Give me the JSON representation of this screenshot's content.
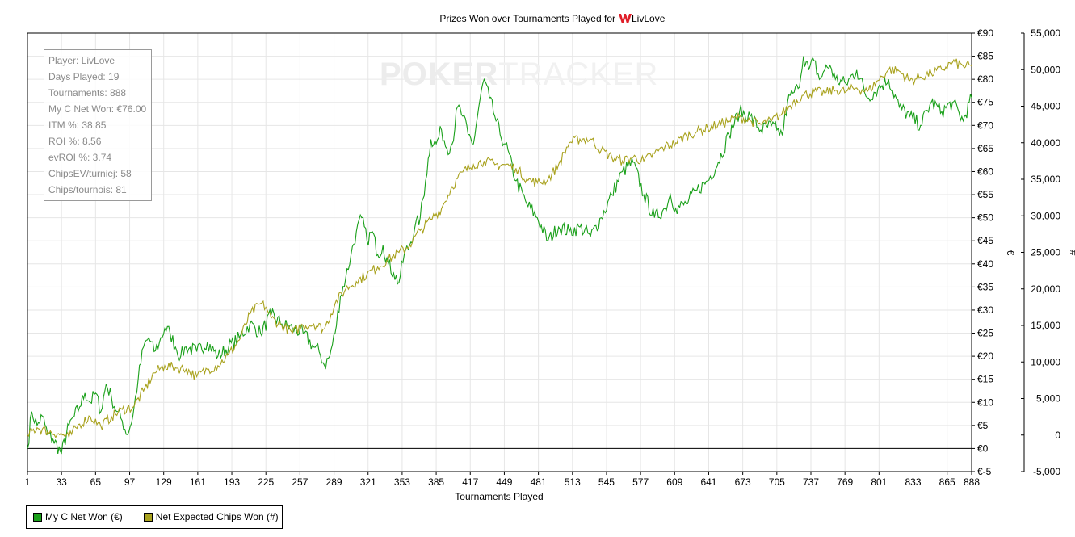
{
  "chart_data": {
    "type": "line",
    "title_prefix": "Prizes Won over Tournaments Played for",
    "player": "LivLove",
    "xlabel": "Tournaments Played",
    "ylabel_left": "€",
    "ylabel_right": "#",
    "xlim": [
      1,
      888
    ],
    "ylim_left": [
      -5,
      90
    ],
    "ylim_right": [
      -5000,
      55000
    ],
    "x_ticks": [
      1,
      33,
      65,
      97,
      129,
      161,
      193,
      225,
      257,
      289,
      321,
      353,
      385,
      417,
      449,
      481,
      513,
      545,
      577,
      609,
      641,
      673,
      705,
      737,
      769,
      801,
      833,
      865,
      888
    ],
    "y_left_ticks": [
      "€-5",
      "€0",
      "€5",
      "€10",
      "€15",
      "€20",
      "€25",
      "€30",
      "€35",
      "€40",
      "€45",
      "€50",
      "€55",
      "€60",
      "€65",
      "€70",
      "€75",
      "€80",
      "€85",
      "€90"
    ],
    "y_left_tick_values": [
      -5,
      0,
      5,
      10,
      15,
      20,
      25,
      30,
      35,
      40,
      45,
      50,
      55,
      60,
      65,
      70,
      75,
      80,
      85,
      90
    ],
    "y_right_ticks": [
      "-5,000",
      "0",
      "5,000",
      "10,000",
      "15,000",
      "20,000",
      "25,000",
      "30,000",
      "35,000",
      "40,000",
      "45,000",
      "50,000",
      "55,000"
    ],
    "y_right_tick_values": [
      -5000,
      0,
      5000,
      10000,
      15000,
      20000,
      25000,
      30000,
      35000,
      40000,
      45000,
      50000,
      55000
    ],
    "grid": true,
    "legend_position": "bottom-left",
    "series": [
      {
        "name": "My C Net Won (€)",
        "axis": "left",
        "color": "#1aa01a",
        "x": [
          1,
          5,
          10,
          15,
          20,
          25,
          33,
          40,
          45,
          50,
          55,
          60,
          65,
          70,
          75,
          80,
          85,
          90,
          95,
          100,
          105,
          110,
          115,
          120,
          125,
          130,
          135,
          140,
          145,
          150,
          160,
          170,
          180,
          190,
          200,
          210,
          220,
          230,
          240,
          250,
          260,
          270,
          275,
          280,
          285,
          290,
          295,
          300,
          305,
          310,
          315,
          320,
          325,
          330,
          335,
          340,
          345,
          350,
          355,
          360,
          365,
          370,
          375,
          380,
          385,
          390,
          395,
          400,
          405,
          410,
          415,
          420,
          425,
          430,
          435,
          440,
          445,
          450,
          460,
          470,
          480,
          490,
          500,
          510,
          520,
          530,
          540,
          550,
          560,
          570,
          580,
          590,
          600,
          605,
          610,
          620,
          630,
          640,
          650,
          660,
          670,
          680,
          690,
          700,
          705,
          710,
          715,
          720,
          725,
          730,
          735,
          740,
          745,
          750,
          755,
          760,
          770,
          780,
          790,
          800,
          810,
          820,
          830,
          840,
          850,
          860,
          870,
          880,
          888
        ],
        "y": [
          0,
          8,
          5,
          7,
          3,
          2,
          -1,
          5,
          7,
          9,
          12,
          10,
          12,
          8,
          14,
          11,
          8,
          6,
          3,
          7,
          15,
          22,
          24,
          21,
          23,
          26,
          25,
          22,
          20,
          22,
          21,
          23,
          20,
          22,
          24,
          27,
          25,
          29,
          27,
          26,
          25,
          22,
          21,
          18,
          20,
          25,
          33,
          37,
          42,
          47,
          50,
          45,
          47,
          42,
          44,
          40,
          38,
          36,
          42,
          44,
          48,
          50,
          58,
          67,
          66,
          69,
          65,
          66,
          74,
          72,
          68,
          66,
          74,
          80,
          76,
          72,
          68,
          66,
          58,
          53,
          50,
          45,
          48,
          47,
          48,
          46,
          50,
          55,
          60,
          62,
          55,
          50,
          52,
          55,
          52,
          53,
          56,
          58,
          62,
          68,
          73,
          72,
          69,
          70,
          69,
          68,
          75,
          77,
          78,
          85,
          82,
          84,
          80,
          82,
          83,
          80,
          79,
          82,
          76,
          78,
          80,
          74,
          72,
          70,
          75,
          73,
          75,
          71,
          76
        ]
      },
      {
        "name": "Net Expected Chips Won (#)",
        "axis": "right",
        "color": "#a9a21e",
        "x": [
          1,
          10,
          20,
          30,
          40,
          50,
          60,
          70,
          80,
          90,
          100,
          110,
          120,
          130,
          140,
          150,
          160,
          170,
          180,
          190,
          200,
          210,
          220,
          225,
          230,
          240,
          250,
          260,
          270,
          280,
          290,
          300,
          310,
          320,
          330,
          340,
          350,
          360,
          370,
          380,
          390,
          400,
          410,
          420,
          430,
          440,
          450,
          460,
          470,
          480,
          490,
          500,
          510,
          520,
          530,
          540,
          550,
          560,
          570,
          580,
          590,
          600,
          610,
          620,
          630,
          640,
          650,
          660,
          670,
          680,
          690,
          700,
          710,
          720,
          730,
          740,
          750,
          760,
          770,
          780,
          790,
          800,
          810,
          820,
          830,
          840,
          850,
          860,
          870,
          880,
          888
        ],
        "y": [
          0,
          1000,
          500,
          200,
          -300,
          1500,
          2500,
          1200,
          2500,
          3500,
          3800,
          6000,
          8500,
          9500,
          9200,
          9000,
          8000,
          9000,
          9500,
          11000,
          13000,
          16500,
          18000,
          17500,
          16000,
          15000,
          14000,
          15000,
          15200,
          14500,
          18000,
          20000,
          21000,
          22000,
          23000,
          24000,
          25000,
          26000,
          28000,
          29500,
          31000,
          34000,
          36000,
          37000,
          37500,
          37000,
          37000,
          36500,
          35000,
          34500,
          35000,
          37000,
          40000,
          40500,
          40500,
          39000,
          38000,
          37500,
          38000,
          37500,
          38500,
          39500,
          40000,
          41000,
          41500,
          42000,
          42500,
          43000,
          43500,
          43000,
          42500,
          43000,
          44000,
          45500,
          46500,
          47000,
          46800,
          47200,
          47000,
          47500,
          47000,
          48500,
          50000,
          49800,
          48500,
          49000,
          49500,
          50000,
          51000,
          50500,
          50500
        ]
      }
    ],
    "stats": [
      "Player: LivLove",
      "Days Played: 19",
      "Tournaments: 888",
      "My C Net Won: €76.00",
      "ITM %: 38.85",
      "ROI %: 8.56",
      "evROI %: 3.74",
      "ChipsEV/turniej: 58",
      "Chips/tournois: 81"
    ],
    "watermark": {
      "bold": "POKER",
      "light": "TRACKER"
    }
  }
}
